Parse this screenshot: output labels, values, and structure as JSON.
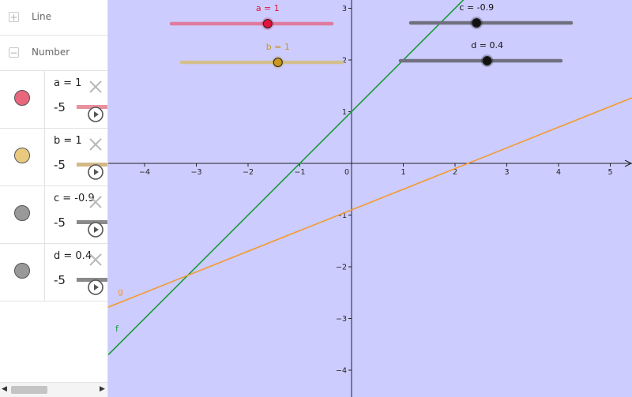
{
  "algebra_view": {
    "groups": [
      {
        "toggle": "+",
        "label": "Line"
      },
      {
        "toggle": "−",
        "label": "Number"
      }
    ],
    "items": [
      {
        "definition": "a = 1",
        "min": "-5",
        "color": "#e8677d",
        "track_color": "#e8919f"
      },
      {
        "definition": "b = 1",
        "min": "-5",
        "color": "#e8c97d",
        "track_color": "#d4b888"
      },
      {
        "definition": "c = -0.9",
        "min": "-5",
        "color": "#999999",
        "track_color": "#8a8a8a"
      },
      {
        "definition": "d = 0.4",
        "min": "-5",
        "color": "#999999",
        "track_color": "#8a8a8a"
      }
    ],
    "scroll": {
      "left": "◀",
      "right": "▶"
    }
  },
  "graphics_view": {
    "background": "#ccccff",
    "axis_range": {
      "x": [
        -4.6,
        5.4
      ],
      "y": [
        -4.6,
        3.1
      ]
    },
    "x_ticks": [
      -4,
      -3,
      -2,
      -1,
      0,
      1,
      2,
      3,
      4,
      5
    ],
    "y_ticks": [
      -4,
      -3,
      -2,
      -1,
      1,
      2,
      3
    ],
    "tick_labels_x": [
      "−4",
      "−3",
      "−2",
      "−1",
      "0",
      "1",
      "2",
      "3",
      "4",
      "5"
    ],
    "tick_labels_y": [
      "−4",
      "−3",
      "−2",
      "−1",
      "1",
      "2",
      "3"
    ],
    "lines": [
      {
        "name": "f",
        "color": "#1a9b3a",
        "slope": 1,
        "intercept": 1
      },
      {
        "name": "g",
        "color": "#f39a2b",
        "slope": 0.4,
        "intercept": -0.9
      }
    ],
    "sliders": [
      {
        "label": "a = 1",
        "label_color": "#e0143c",
        "min": -5,
        "max": 5,
        "value": 1,
        "track_color": "#e07b9d",
        "point_color": "#e0143c"
      },
      {
        "label": "b = 1",
        "label_color": "#c9981c",
        "min": -5,
        "max": 5,
        "value": 1,
        "track_color": "#d4bf8f",
        "point_color": "#c9981c"
      },
      {
        "label": "c = -0.9",
        "label_color": "#111111",
        "min": -5,
        "max": 5,
        "value": -0.9,
        "track_color": "#707080",
        "point_color": "#111111"
      },
      {
        "label": "d = 0.4",
        "label_color": "#111111",
        "min": -5,
        "max": 5,
        "value": 0.4,
        "track_color": "#707080",
        "point_color": "#111111"
      }
    ]
  }
}
